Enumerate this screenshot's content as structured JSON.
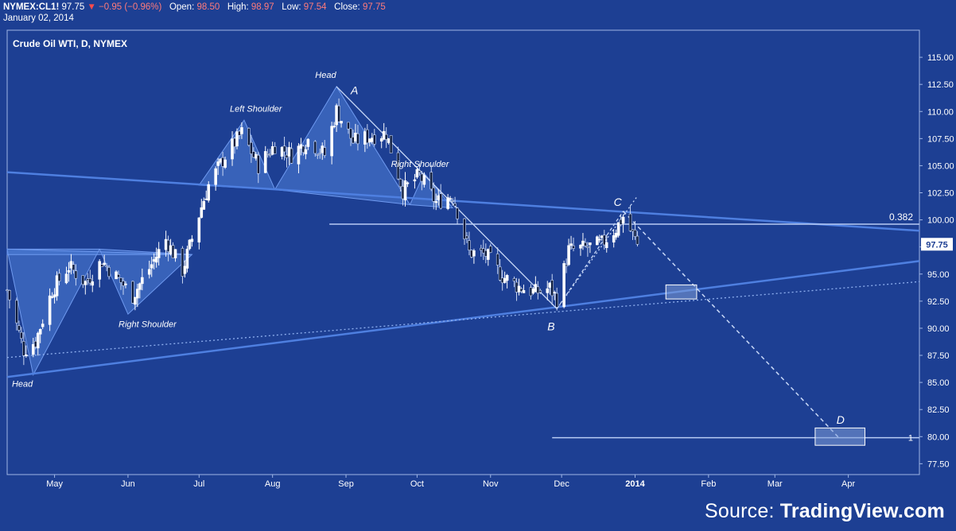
{
  "header": {
    "symbol": "NYMEX:CL1!",
    "last": "97.75",
    "change": "−0.95 (−0.96%)",
    "open_label": "Open:",
    "open": "98.50",
    "high_label": "High:",
    "high": "98.97",
    "low_label": "Low:",
    "low": "97.54",
    "close_label": "Close:",
    "close": "97.75",
    "date": "January 02, 2014"
  },
  "source": {
    "prefix": "Source:",
    "brand": "TradingView.com"
  },
  "colors": {
    "background": "#1d3f93",
    "plot_border": "#9fb6e6",
    "trendline": "#4e7fe0",
    "pattern_fill": "#4f7fd8",
    "candle_up": "#ffffff",
    "candle_down": "#0b1a3c",
    "last_price_bg": "#ffffff",
    "down_arrow": "#ff4b4b"
  },
  "chart_data": {
    "type": "candlestick",
    "title": "Crude Oil WTI, D, NYMEX",
    "x_ticks": [
      "May",
      "Jun",
      "Jul",
      "Aug",
      "Sep",
      "Oct",
      "Nov",
      "Dec",
      "2014",
      "Feb",
      "Mar",
      "Apr"
    ],
    "y_ticks": [
      "115.00",
      "112.50",
      "110.00",
      "107.50",
      "105.00",
      "102.50",
      "100.00",
      "97.50",
      "95.00",
      "92.50",
      "90.00",
      "87.50",
      "85.00",
      "82.50",
      "80.00",
      "77.50"
    ],
    "ylim": [
      76.5,
      117.5
    ],
    "y_axis_side": "right",
    "last_price_label": "97.75",
    "close_path": [
      {
        "date": "2013-04-11",
        "close": 93.5
      },
      {
        "date": "2013-04-18",
        "close": 88.0
      },
      {
        "date": "2013-04-23",
        "close": 88.8
      },
      {
        "date": "2013-04-30",
        "close": 93.5
      },
      {
        "date": "2013-05-07",
        "close": 95.7
      },
      {
        "date": "2013-05-14",
        "close": 94.2
      },
      {
        "date": "2013-05-21",
        "close": 96.2
      },
      {
        "date": "2013-05-28",
        "close": 94.5
      },
      {
        "date": "2013-06-03",
        "close": 93.0
      },
      {
        "date": "2013-06-10",
        "close": 95.5
      },
      {
        "date": "2013-06-17",
        "close": 98.2
      },
      {
        "date": "2013-06-24",
        "close": 95.3
      },
      {
        "date": "2013-07-02",
        "close": 101.2
      },
      {
        "date": "2013-07-05",
        "close": 103.2
      },
      {
        "date": "2013-07-12",
        "close": 105.9
      },
      {
        "date": "2013-07-19",
        "close": 108.0
      },
      {
        "date": "2013-07-26",
        "close": 105.0
      },
      {
        "date": "2013-08-02",
        "close": 106.9
      },
      {
        "date": "2013-08-09",
        "close": 106.0
      },
      {
        "date": "2013-08-16",
        "close": 107.4
      },
      {
        "date": "2013-08-23",
        "close": 106.0
      },
      {
        "date": "2013-08-28",
        "close": 110.1
      },
      {
        "date": "2013-09-04",
        "close": 107.2
      },
      {
        "date": "2013-09-11",
        "close": 107.7
      },
      {
        "date": "2013-09-18",
        "close": 108.0
      },
      {
        "date": "2013-09-25",
        "close": 102.7
      },
      {
        "date": "2013-10-02",
        "close": 104.1
      },
      {
        "date": "2013-10-09",
        "close": 101.6
      },
      {
        "date": "2013-10-16",
        "close": 102.3
      },
      {
        "date": "2013-10-23",
        "close": 97.0
      },
      {
        "date": "2013-10-30",
        "close": 96.8
      },
      {
        "date": "2013-11-06",
        "close": 94.8
      },
      {
        "date": "2013-11-13",
        "close": 93.8
      },
      {
        "date": "2013-11-20",
        "close": 93.3
      },
      {
        "date": "2013-11-26",
        "close": 93.7
      },
      {
        "date": "2013-11-29",
        "close": 92.7
      },
      {
        "date": "2013-12-04",
        "close": 97.2
      },
      {
        "date": "2013-12-11",
        "close": 97.4
      },
      {
        "date": "2013-12-18",
        "close": 97.8
      },
      {
        "date": "2013-12-24",
        "close": 99.2
      },
      {
        "date": "2013-12-27",
        "close": 100.3
      },
      {
        "date": "2014-01-02",
        "close": 97.75
      }
    ],
    "horizontal_levels": [
      {
        "label": "0.382",
        "value": 99.6
      },
      {
        "label": "1",
        "value": 79.9
      }
    ],
    "annotations": [
      "Head",
      "Left Shoulder",
      "Right Shoulder",
      "Right Shoulder",
      "Head",
      "A",
      "B",
      "C",
      "D"
    ],
    "target_boxes": [
      {
        "x_from": "2014-01-14",
        "x_to": "2014-01-27",
        "y_from": 92.7,
        "y_to": 94.0
      },
      {
        "x_from": "2014-03-18",
        "x_to": "2014-04-08",
        "y_from": 79.2,
        "y_to": 80.8
      }
    ]
  }
}
